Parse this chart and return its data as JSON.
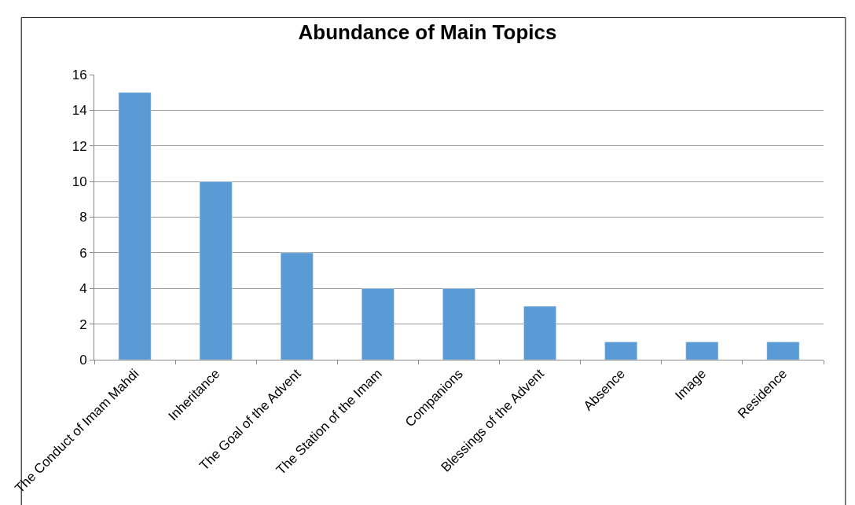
{
  "chart_data": {
    "type": "bar",
    "title": "Abundance of Main Topics",
    "categories": [
      "The Conduct of Imam Mahdi",
      "Inheritance",
      "The Goal of the Advent",
      "The Station of the Imam",
      "Companions",
      "Blessings of the Advent",
      "Absence",
      "Image",
      "Residence"
    ],
    "values": [
      15,
      10,
      6,
      4,
      4,
      3,
      1,
      1,
      1
    ],
    "color": "#5b9bd5",
    "ylim": [
      0,
      16
    ],
    "yticks": [
      0,
      2,
      4,
      6,
      8,
      10,
      12,
      14,
      16
    ],
    "grid": "y",
    "legend": false
  }
}
